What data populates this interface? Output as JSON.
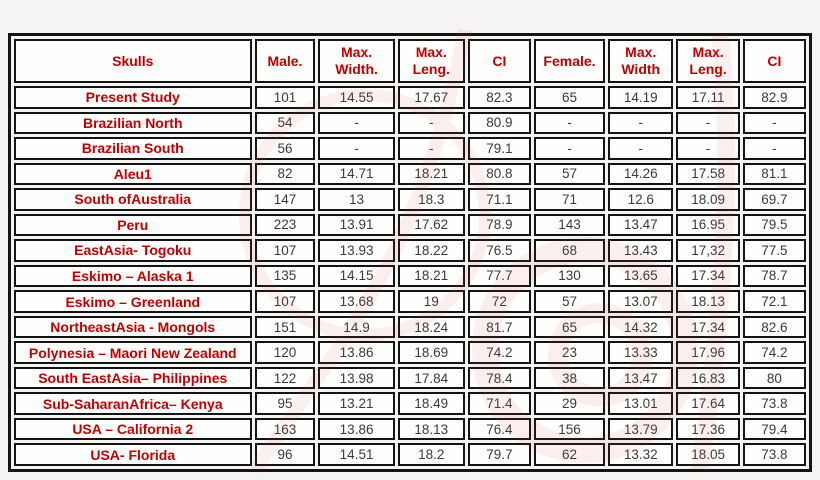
{
  "page": {
    "background": "#f5f4f2"
  },
  "colors": {
    "accent_red": "#c00000",
    "border_black": "#141414",
    "number_text": "#3a3a3a",
    "cell_background": "#fefefd",
    "watermark_red": "#cf4747"
  },
  "chart_data": {
    "type": "table",
    "title": "Skulls measurement comparison table",
    "columns": [
      "Skulls",
      "Male.",
      "Max.\nWidth.",
      "Max.\nLeng.",
      "CI",
      "Female.",
      "Max.\nWidth",
      "Max.\nLeng.",
      "CI"
    ],
    "rows": [
      {
        "label": "Present Study",
        "values": [
          "101",
          "14.55",
          "17.67",
          "82.3",
          "65",
          "14.19",
          "17.11",
          "82.9"
        ]
      },
      {
        "label": "Brazilian North",
        "values": [
          "54",
          "-",
          "-",
          "80.9",
          "-",
          "-",
          "-",
          "-"
        ]
      },
      {
        "label": "Brazilian South",
        "values": [
          "56",
          "-",
          "-",
          "79.1",
          "-",
          "-",
          "-",
          "-"
        ]
      },
      {
        "label": "Aleu1",
        "values": [
          "82",
          "14.71",
          "18.21",
          "80.8",
          "57",
          "14.26",
          "17.58",
          "81.1"
        ]
      },
      {
        "label": "South ofAustralia",
        "values": [
          "147",
          "13",
          "18.3",
          "71.1",
          "71",
          "12.6",
          "18.09",
          "69.7"
        ]
      },
      {
        "label": "Peru",
        "values": [
          "223",
          "13.91",
          "17.62",
          "78.9",
          "143",
          "13.47",
          "16.95",
          "79.5"
        ]
      },
      {
        "label": "EastAsia- Togoku",
        "values": [
          "107",
          "13.93",
          "18.22",
          "76.5",
          "68",
          "13.43",
          "17,32",
          "77.5"
        ]
      },
      {
        "label": "Eskimo – Alaska 1",
        "values": [
          "135",
          "14.15",
          "18.21",
          "77.7",
          "130",
          "13.65",
          "17.34",
          "78.7"
        ]
      },
      {
        "label": "Eskimo – Greenland",
        "values": [
          "107",
          "13.68",
          "19",
          "72",
          "57",
          "13.07",
          "18.13",
          "72.1"
        ]
      },
      {
        "label": "NortheastAsia - Mongols",
        "values": [
          "151",
          "14.9",
          "18.24",
          "81.7",
          "65",
          "14.32",
          "17.34",
          "82.6"
        ]
      },
      {
        "label": "Polynesia – Maori New Zealand",
        "values": [
          "120",
          "13.86",
          "18.69",
          "74.2",
          "23",
          "13.33",
          "17.96",
          "74.2"
        ]
      },
      {
        "label": "South EastAsia– Philippines",
        "values": [
          "122",
          "13.98",
          "17.84",
          "78.4",
          "38",
          "13.47",
          "16.83",
          "80"
        ]
      },
      {
        "label": "Sub-SaharanAfrica– Kenya",
        "values": [
          "95",
          "13.21",
          "18.49",
          "71.4",
          "29",
          "13.01",
          "17.64",
          "73.8"
        ]
      },
      {
        "label": "USA – California 2",
        "values": [
          "163",
          "13.86",
          "18.13",
          "76.4",
          "156",
          "13.79",
          "17.36",
          "79.4"
        ]
      },
      {
        "label": "USA- Florida",
        "values": [
          "96",
          "14.51",
          "18.2",
          "79.7",
          "62",
          "13.32",
          "18.05",
          "73.8"
        ]
      }
    ]
  }
}
